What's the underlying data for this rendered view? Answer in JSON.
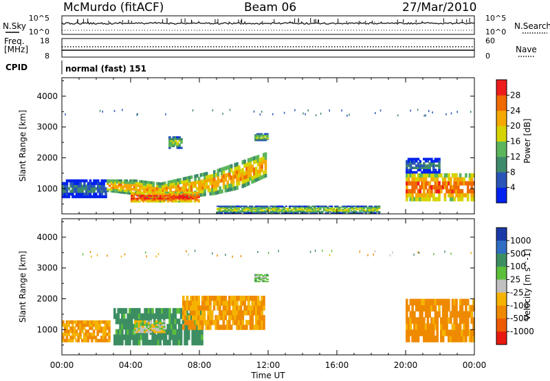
{
  "header": {
    "station": "McMurdo (fitACF)",
    "beam": "Beam 06",
    "date": "27/Mar/2010"
  },
  "top_panels": {
    "nsky_label": "N.Sky",
    "nsearch_label": "N.Search",
    "freq_label": "Freq.",
    "freq_unit": "[MHz]",
    "nave_label": "Nave",
    "cpid_label": "CPID",
    "cpid_value": "normal (fast) 151",
    "noise_ticks_left": [
      "10^5",
      "10^0"
    ],
    "noise_ticks_right": [
      "10^5",
      "10^0"
    ],
    "freq_ticks": [
      "18",
      "8"
    ],
    "nave_ticks": [
      "60",
      "0"
    ]
  },
  "power_panel": {
    "ylabel": "Slant Range [km]",
    "colorbar_label": "Power [dB]",
    "colorbar_ticks": [
      "28",
      "24",
      "20",
      "16",
      "12",
      "8",
      "4"
    ],
    "colors": [
      "#0022ee",
      "#2a55b8",
      "#3e8a6a",
      "#5cb55c",
      "#d6d400",
      "#f5a800",
      "#ef6a00",
      "#ee1c1c"
    ]
  },
  "velocity_panel": {
    "ylabel": "Slant Range [km]",
    "colorbar_label": "Velocity [m s^-1]",
    "colorbar_ticks": [
      "1000",
      "500",
      "100",
      "25",
      "-25",
      "-100",
      "-500",
      "-1000"
    ],
    "colors": [
      "#1a3aa8",
      "#2f6ec2",
      "#3c8e62",
      "#5cbf3c",
      "#c0c0c0",
      "#f5b300",
      "#ef8a00",
      "#ef5a00",
      "#e81a10"
    ]
  },
  "xaxis": {
    "title": "Time UT",
    "ticks": [
      "00:00",
      "04:00",
      "08:00",
      "12:00",
      "16:00",
      "20:00",
      "00:00"
    ]
  },
  "chart_data": [
    {
      "type": "heatmap",
      "title": "Beam 06",
      "xlabel": "Time UT",
      "ylabel": "Slant Range [km]",
      "xlim": [
        0,
        24
      ],
      "ylim": [
        180,
        4600
      ],
      "colorbar": {
        "label": "Power [dB]",
        "range": [
          0,
          32
        ],
        "ticks": [
          4,
          8,
          12,
          16,
          20,
          24,
          28
        ]
      },
      "echo_regions": [
        {
          "t": [
            0.0,
            2.6
          ],
          "range": [
            700,
            1300
          ],
          "power": 8
        },
        {
          "t": [
            2.6,
            11.9
          ],
          "range_low": [
            900,
            800,
            600,
            700,
            800,
            1000,
            1400
          ],
          "range_high": [
            1300,
            1300,
            1200,
            1400,
            1600,
            1900,
            2200
          ],
          "power": 22
        },
        {
          "t": [
            4.0,
            8.0
          ],
          "range": [
            560,
            900
          ],
          "power": 28
        },
        {
          "t": [
            6.2,
            7.0
          ],
          "range": [
            2300,
            2700
          ],
          "power": 16
        },
        {
          "t": [
            11.2,
            12.0
          ],
          "range": [
            2550,
            2800
          ],
          "power": 16
        },
        {
          "t": [
            9.0,
            18.5
          ],
          "range": [
            200,
            450
          ],
          "power": 16
        },
        {
          "t": [
            20.0,
            24.0
          ],
          "range": [
            600,
            1500
          ],
          "power": 26
        },
        {
          "t": [
            20.0,
            22.0
          ],
          "range": [
            1500,
            2000
          ],
          "power": 8
        }
      ]
    },
    {
      "type": "heatmap",
      "title": "",
      "xlabel": "Time UT",
      "ylabel": "Slant Range [km]",
      "xlim": [
        0,
        24
      ],
      "ylim": [
        180,
        4600
      ],
      "colorbar": {
        "label": "Velocity [m s^-1]",
        "range": [
          -1500,
          1500
        ],
        "ticks": [
          -1000,
          -500,
          -100,
          -25,
          25,
          100,
          500,
          1000
        ]
      },
      "echo_regions": [
        {
          "t": [
            0.0,
            2.8
          ],
          "range": [
            600,
            1300
          ],
          "velocity": -100
        },
        {
          "t": [
            3.0,
            8.2
          ],
          "range": [
            500,
            1700
          ],
          "velocity": 150
        },
        {
          "t": [
            4.2,
            6.0
          ],
          "range": [
            900,
            1300
          ],
          "velocity": 0
        },
        {
          "t": [
            7.0,
            11.8
          ],
          "range": [
            1000,
            2100
          ],
          "velocity": -100
        },
        {
          "t": [
            11.2,
            12.0
          ],
          "range": [
            2550,
            2800
          ],
          "velocity": 50
        },
        {
          "t": [
            20.0,
            24.0
          ],
          "range": [
            600,
            2000
          ],
          "velocity": -150
        }
      ]
    }
  ]
}
